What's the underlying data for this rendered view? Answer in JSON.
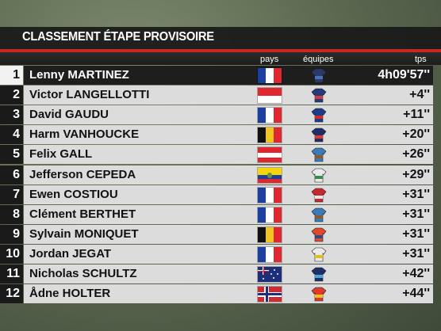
{
  "header": {
    "title": "CLASSEMENT ÉTAPE PROVISOIRE"
  },
  "columns": {
    "country": "pays",
    "teams": "équipes",
    "time": "tps"
  },
  "colors": {
    "accent_red": "#c8281e",
    "leader_bar": "#1e1e1e",
    "row_bar": "#dcdcdc"
  },
  "rows": [
    {
      "rank": "1",
      "name": "Lenny MARTINEZ",
      "time": "4h09'57''",
      "flag": "france",
      "jersey": [
        "#2a3a6a",
        "#4a6fb5"
      ]
    },
    {
      "rank": "2",
      "name": "Victor LANGELLOTTI",
      "time": "+4''",
      "flag": "monaco",
      "jersey": [
        "#243a7a",
        "#d23a3a"
      ]
    },
    {
      "rank": "3",
      "name": "David GAUDU",
      "time": "+11''",
      "flag": "france",
      "jersey": [
        "#1f3c8a",
        "#cf2b2b"
      ]
    },
    {
      "rank": "4",
      "name": "Harm VANHOUCKE",
      "time": "+20''",
      "flag": "belgium",
      "jersey": [
        "#1e2f6a",
        "#e03a2a"
      ]
    },
    {
      "rank": "5",
      "name": "Felix GALL",
      "time": "+26''",
      "flag": "austria",
      "jersey": [
        "#3a7bb8",
        "#8a5a2a"
      ]
    },
    {
      "rank": "6",
      "name": "Jefferson CEPEDA",
      "time": "+29''",
      "flag": "ecuador",
      "jersey": [
        "#e9e9e9",
        "#3a8a4a"
      ]
    },
    {
      "rank": "7",
      "name": "Ewen COSTIOU",
      "time": "+31''",
      "flag": "france",
      "jersey": [
        "#c8282e",
        "#e9e9e9"
      ]
    },
    {
      "rank": "8",
      "name": "Clément BERTHET",
      "time": "+31''",
      "flag": "france",
      "jersey": [
        "#3a7bb8",
        "#8a5a2a"
      ]
    },
    {
      "rank": "9",
      "name": "Sylvain MONIQUET",
      "time": "+31''",
      "flag": "belgium",
      "jersey": [
        "#e04a2a",
        "#2a4a8a"
      ]
    },
    {
      "rank": "10",
      "name": "Jordan JEGAT",
      "time": "+31''",
      "flag": "france",
      "jersey": [
        "#e9e9e9",
        "#e0c020"
      ]
    },
    {
      "rank": "11",
      "name": "Nicholas SCHULTZ",
      "time": "+42''",
      "flag": "australia",
      "jersey": [
        "#1e2f6a",
        "#4aa8d8"
      ]
    },
    {
      "rank": "12",
      "name": "Ådne HOLTER",
      "time": "+44''",
      "flag": "norway",
      "jersey": [
        "#e03a2a",
        "#f0c020"
      ]
    }
  ]
}
